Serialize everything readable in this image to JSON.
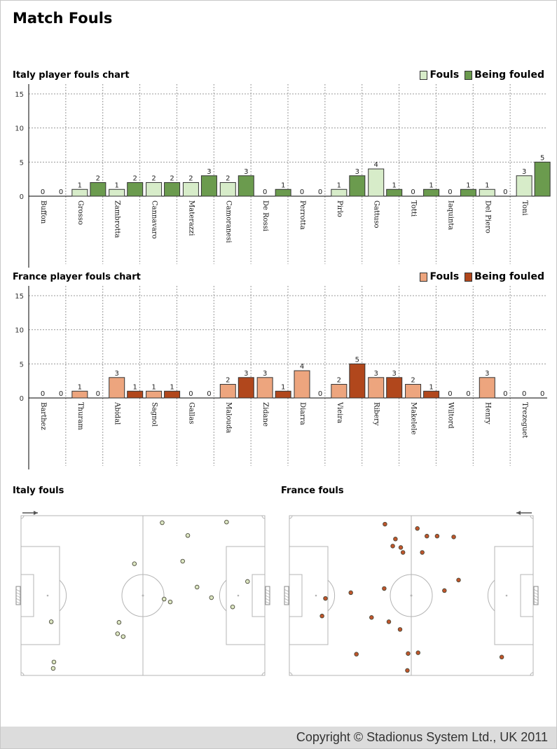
{
  "page": {
    "title": "Match Fouls"
  },
  "colors": {
    "italy_fouls": "#d7ecc9",
    "italy_fouled": "#6b9b4e",
    "france_fouls": "#eda57e",
    "france_fouled": "#b1471c",
    "italy_dot": "#dde7c3",
    "france_dot": "#c0552b"
  },
  "italy_chart": {
    "title": "Italy player fouls chart",
    "legend": [
      "Fouls",
      "Being fouled"
    ]
  },
  "france_chart": {
    "title": "France player fouls chart",
    "legend": [
      "Fouls",
      "Being fouled"
    ]
  },
  "pitches": {
    "italy_title": "Italy fouls",
    "france_title": "France fouls"
  },
  "footer": {
    "copyright": "Copyright © Stadionus System Ltd., UK 2011"
  },
  "chart_data": [
    {
      "type": "bar",
      "title": "Italy player fouls chart",
      "categories": [
        "Buffon",
        "Grosso",
        "Zambrotta",
        "Cannavaro",
        "Materazzi",
        "Camoranesi",
        "De Rossi",
        "Perrotta",
        "Pirlo",
        "Gattuso",
        "Totti",
        "Iaquinta",
        "Del Piero",
        "Toni"
      ],
      "series": [
        {
          "name": "Fouls",
          "values": [
            0,
            1,
            1,
            2,
            2,
            2,
            0,
            0,
            1,
            4,
            0,
            0,
            1,
            3
          ]
        },
        {
          "name": "Being fouled",
          "values": [
            0,
            2,
            2,
            2,
            3,
            3,
            1,
            0,
            3,
            1,
            1,
            1,
            0,
            5
          ]
        }
      ],
      "yticks": [
        0,
        5,
        10,
        15
      ],
      "ylim": [
        0,
        15
      ],
      "grid": true,
      "legend_position": "top-right"
    },
    {
      "type": "bar",
      "title": "France player fouls chart",
      "categories": [
        "Barthez",
        "Thuram",
        "Abidal",
        "Sagnol",
        "Gallas",
        "Malouda",
        "Zidane",
        "Diarra",
        "Vieira",
        "Ribery",
        "Makelele",
        "Wiltord",
        "Henry",
        "Trezeguet"
      ],
      "series": [
        {
          "name": "Fouls",
          "values": [
            0,
            1,
            3,
            1,
            0,
            2,
            3,
            4,
            2,
            3,
            2,
            0,
            3,
            0
          ]
        },
        {
          "name": "Being fouled",
          "values": [
            0,
            0,
            1,
            1,
            0,
            3,
            1,
            0,
            5,
            3,
            1,
            0,
            0,
            0
          ]
        }
      ],
      "yticks": [
        0,
        5,
        10,
        15
      ],
      "ylim": [
        0,
        15
      ],
      "grid": true,
      "legend_position": "top-right"
    },
    {
      "type": "scatter",
      "title": "Italy fouls",
      "x_range": [
        0,
        100
      ],
      "y_range": [
        0,
        100
      ],
      "attack_direction": "left",
      "points": [
        [
          57.9,
          4.4
        ],
        [
          68.4,
          12.4
        ],
        [
          84.3,
          4.0
        ],
        [
          46.5,
          30.1
        ],
        [
          66.3,
          28.5
        ],
        [
          92.9,
          41.2
        ],
        [
          72.2,
          44.7
        ],
        [
          58.7,
          52.2
        ],
        [
          61.2,
          54.0
        ],
        [
          78.1,
          51.3
        ],
        [
          86.8,
          57.1
        ],
        [
          12.4,
          66.4
        ],
        [
          40.2,
          66.8
        ],
        [
          39.6,
          73.9
        ],
        [
          41.9,
          75.7
        ],
        [
          13.5,
          91.6
        ],
        [
          13.2,
          95.6
        ]
      ]
    },
    {
      "type": "scatter",
      "title": "France fouls",
      "x_range": [
        0,
        100
      ],
      "y_range": [
        0,
        100
      ],
      "attack_direction": "right",
      "points": [
        [
          39.2,
          5.3
        ],
        [
          52.5,
          8.0
        ],
        [
          56.4,
          12.8
        ],
        [
          60.6,
          12.8
        ],
        [
          67.4,
          13.3
        ],
        [
          43.5,
          14.6
        ],
        [
          42.4,
          19.0
        ],
        [
          45.7,
          19.9
        ],
        [
          46.6,
          23.0
        ],
        [
          54.5,
          23.0
        ],
        [
          69.4,
          40.3
        ],
        [
          38.9,
          45.6
        ],
        [
          63.6,
          46.9
        ],
        [
          25.2,
          48.2
        ],
        [
          14.8,
          51.8
        ],
        [
          13.4,
          62.8
        ],
        [
          33.7,
          63.7
        ],
        [
          40.8,
          66.4
        ],
        [
          45.4,
          71.2
        ],
        [
          27.5,
          86.7
        ],
        [
          48.7,
          86.3
        ],
        [
          52.8,
          85.8
        ],
        [
          87.1,
          88.5
        ],
        [
          48.4,
          96.9
        ]
      ]
    }
  ]
}
